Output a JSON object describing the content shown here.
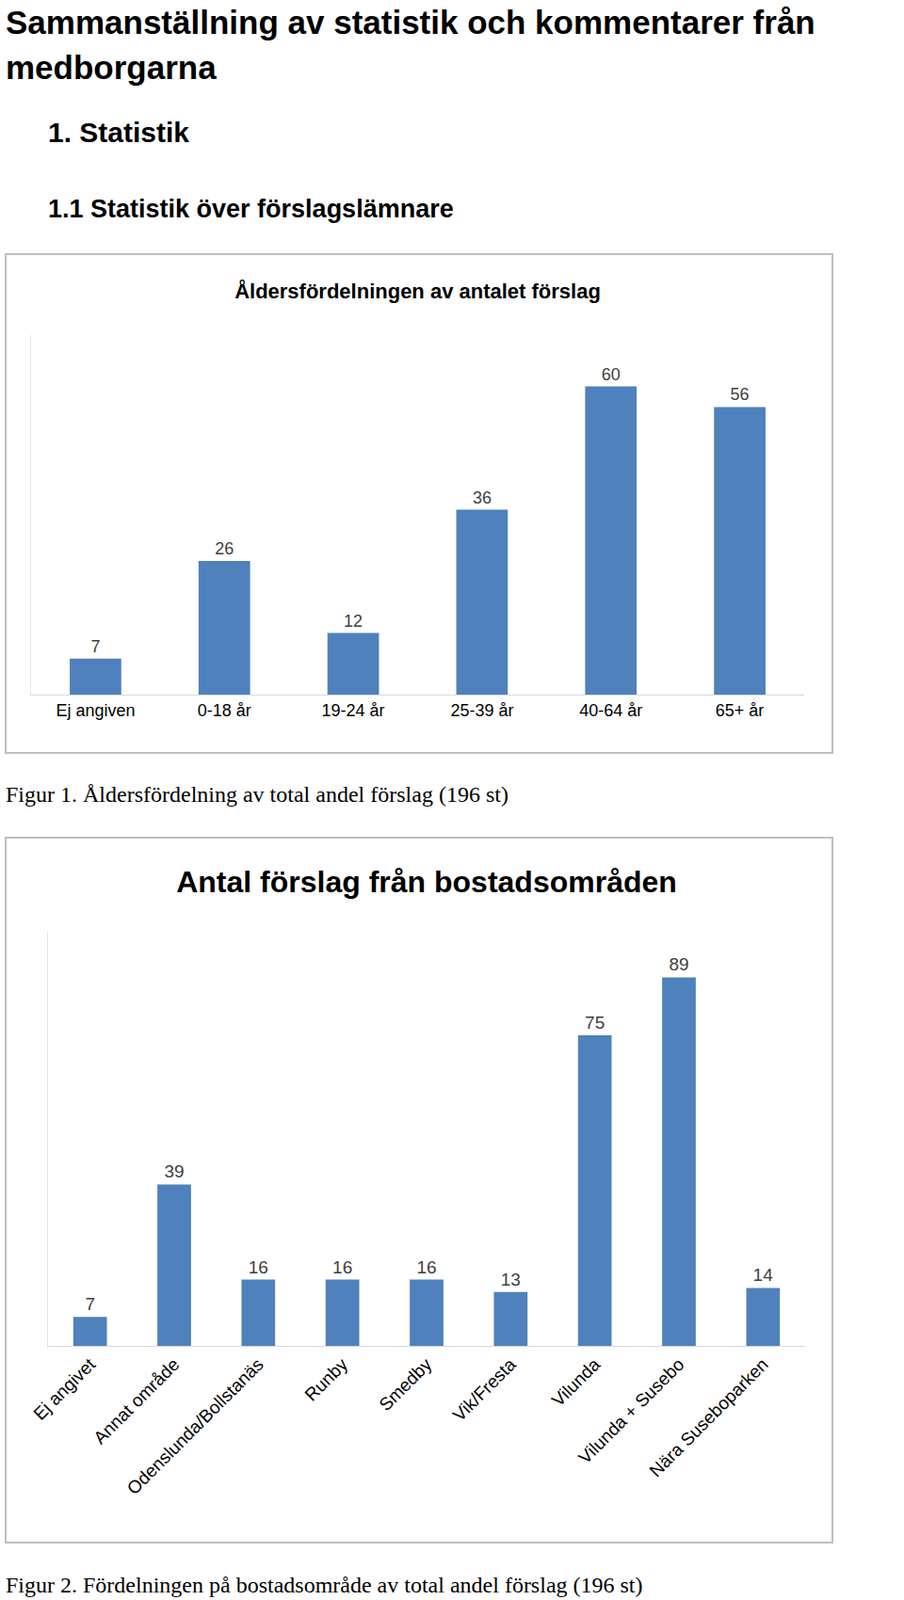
{
  "document": {
    "title": "Sammanställning av statistik och kommentarer från medborgarna",
    "heading": "1. Statistik",
    "subheading": "1.1 Statistik över förslagslämnare",
    "captions": [
      "Figur 1. Åldersfördelning av total andel förslag (196 st)",
      "Figur 2. Fördelningen på bostadsområde av total andel förslag (196 st)"
    ]
  },
  "chart_data": [
    {
      "type": "bar",
      "title": "Åldersfördelningen av antalet förslag",
      "categories": [
        "Ej angiven",
        "0-18 år",
        "19-24 år",
        "25-39 år",
        "40-64 år",
        "65+ år"
      ],
      "values": [
        7,
        26,
        12,
        36,
        60,
        56
      ],
      "color": "#4f81bd",
      "ylim": [
        0,
        70
      ],
      "grid": false,
      "data_labels": true,
      "tick_labels": "x"
    },
    {
      "type": "bar",
      "title": "Antal förslag från bostadsområden",
      "categories": [
        "Ej angivet",
        "Annat område",
        "Odenslunda/Bollstanäs",
        "Runby",
        "Smedby",
        "Vik/Fresta",
        "Vilunda",
        "Vilunda + Susebo",
        "Nära Suseboparken"
      ],
      "values": [
        7,
        39,
        16,
        16,
        16,
        13,
        75,
        89,
        14
      ],
      "color": "#4f81bd",
      "ylim": [
        0,
        100
      ],
      "grid": false,
      "data_labels": true,
      "tick_labels": "x"
    }
  ]
}
